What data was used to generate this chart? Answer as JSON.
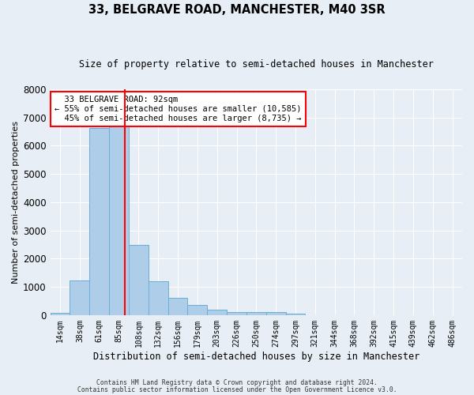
{
  "title": "33, BELGRAVE ROAD, MANCHESTER, M40 3SR",
  "subtitle": "Size of property relative to semi-detached houses in Manchester",
  "xlabel": "Distribution of semi-detached houses by size in Manchester",
  "ylabel": "Number of semi-detached properties",
  "bar_color": "#aecde8",
  "bar_edge_color": "#6aaed6",
  "background_color": "#e8eef5",
  "grid_color": "#ffffff",
  "property_label": "33 BELGRAVE ROAD: 92sqm",
  "pct_smaller": 55,
  "pct_smaller_n": "10,585",
  "pct_larger": 45,
  "pct_larger_n": "8,735",
  "bin_labels": [
    "14sqm",
    "38sqm",
    "61sqm",
    "85sqm",
    "108sqm",
    "132sqm",
    "156sqm",
    "179sqm",
    "203sqm",
    "226sqm",
    "250sqm",
    "274sqm",
    "297sqm",
    "321sqm",
    "344sqm",
    "368sqm",
    "392sqm",
    "415sqm",
    "439sqm",
    "462sqm",
    "486sqm"
  ],
  "bin_values": [
    90,
    1220,
    6620,
    6720,
    2480,
    1190,
    600,
    350,
    200,
    120,
    100,
    100,
    60,
    0,
    0,
    0,
    0,
    0,
    0,
    0,
    0
  ],
  "bin_edges_sqm": [
    14,
    38,
    61,
    85,
    108,
    132,
    156,
    179,
    203,
    226,
    250,
    274,
    297,
    321,
    344,
    368,
    392,
    415,
    439,
    462,
    486
  ],
  "red_line_x": 92,
  "ylim": [
    0,
    8000
  ],
  "yticks": [
    0,
    1000,
    2000,
    3000,
    4000,
    5000,
    6000,
    7000,
    8000
  ],
  "footer_line1": "Contains HM Land Registry data © Crown copyright and database right 2024.",
  "footer_line2": "Contains public sector information licensed under the Open Government Licence v3.0."
}
